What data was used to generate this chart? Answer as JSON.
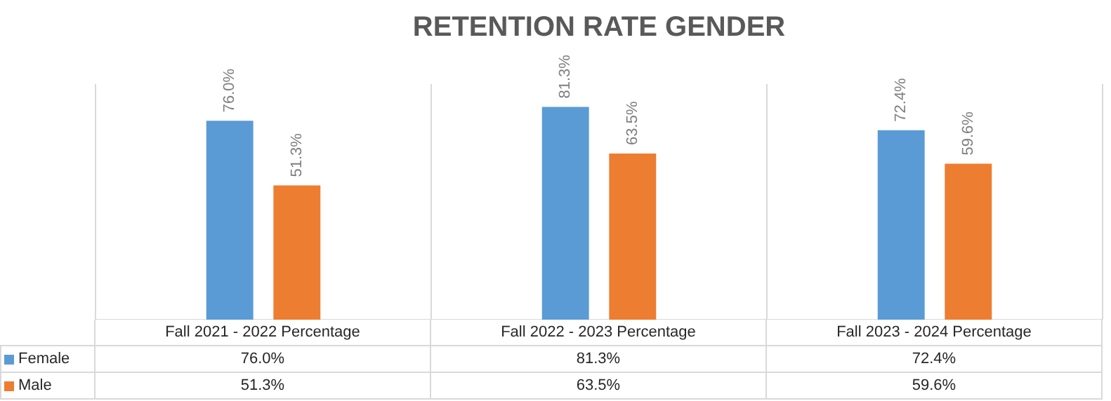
{
  "chart_data": {
    "type": "bar",
    "title": "RETENTION RATE GENDER",
    "categories": [
      "Fall 2021 - 2022 Percentage",
      "Fall 2022 - 2023 Percentage",
      "Fall 2023 -  2024 Percentage"
    ],
    "series": [
      {
        "name": "Female",
        "color": "#5b9bd5",
        "values": [
          76.0,
          81.3,
          72.4
        ],
        "value_labels": [
          "76.0%",
          "81.3%",
          "72.4%"
        ]
      },
      {
        "name": "Male",
        "color": "#ed7d31",
        "values": [
          51.3,
          63.5,
          59.6
        ],
        "value_labels": [
          "51.3%",
          "63.5%",
          "59.6%"
        ]
      }
    ],
    "grid": "x",
    "legend": "bottom"
  }
}
